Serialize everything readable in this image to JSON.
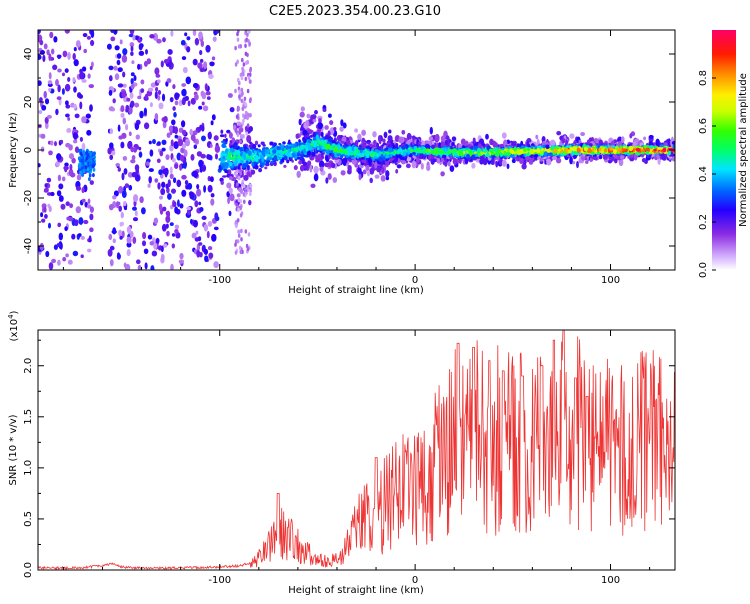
{
  "figure": {
    "title": "C2E5.2023.354.00.23.G10"
  },
  "chart_data": [
    {
      "type": "heatmap",
      "title": "C2E5.2023.354.00.23.G10",
      "xlabel": "Height of straight line (km)",
      "ylabel": "Frequency (Hz)",
      "xlim": [
        -193,
        133
      ],
      "ylim": [
        -50,
        50
      ],
      "xticks": [
        -100,
        0,
        100
      ],
      "yticks": [
        -40,
        -20,
        0,
        20,
        40
      ],
      "grid": false,
      "colorbar": {
        "label": "Normalized spectral amplitude",
        "range": [
          0.0,
          1.0
        ],
        "ticks": [
          0.0,
          0.2,
          0.4,
          0.6,
          0.8
        ],
        "tick_labels": [
          "0.0",
          "0.2",
          "0.4",
          "0.6",
          "0.8"
        ],
        "colormap": "rainbow (white-violet-blue-cyan-green-yellow-red-magenta)"
      },
      "gaps_x": [
        [
          -165,
          -157
        ],
        [
          -101,
          -96
        ],
        [
          -84,
          -60
        ]
      ],
      "ridge": [
        {
          "x": -193,
          "f": 0,
          "width": 50,
          "amp": 0.25
        },
        {
          "x": -170,
          "f": -4,
          "width": 50,
          "amp": 0.3
        },
        {
          "x": -160,
          "f": -6,
          "width": 50,
          "amp": 0.35
        },
        {
          "x": -140,
          "f": 0,
          "width": 50,
          "amp": 0.25
        },
        {
          "x": -110,
          "f": 0,
          "width": 50,
          "amp": 0.25
        },
        {
          "x": -95,
          "f": -3,
          "width": 12,
          "amp": 0.5
        },
        {
          "x": -80,
          "f": -3,
          "width": 10,
          "amp": 0.45
        },
        {
          "x": -60,
          "f": 0,
          "width": 9,
          "amp": 0.45
        },
        {
          "x": -50,
          "f": 3,
          "width": 8,
          "amp": 0.5
        },
        {
          "x": -40,
          "f": 0,
          "width": 6,
          "amp": 0.55
        },
        {
          "x": -20,
          "f": -2,
          "width": 5,
          "amp": 0.5
        },
        {
          "x": 0,
          "f": 0,
          "width": 4,
          "amp": 0.55
        },
        {
          "x": 20,
          "f": -1,
          "width": 3.5,
          "amp": 0.6
        },
        {
          "x": 40,
          "f": -1,
          "width": 3,
          "amp": 0.7
        },
        {
          "x": 60,
          "f": -0.5,
          "width": 3,
          "amp": 0.75
        },
        {
          "x": 80,
          "f": 0,
          "width": 3,
          "amp": 0.85
        },
        {
          "x": 100,
          "f": 0,
          "width": 2.5,
          "amp": 0.9
        },
        {
          "x": 120,
          "f": 0,
          "width": 2.5,
          "amp": 0.95
        },
        {
          "x": 133,
          "f": 0,
          "width": 2.5,
          "amp": 0.95
        }
      ]
    },
    {
      "type": "line",
      "xlabel": "Height of straight line (km)",
      "ylabel": "SNR (10 * v/v)",
      "y_multiplier": "(x10^4)",
      "xlim": [
        -193,
        133
      ],
      "ylim": [
        0,
        2.35
      ],
      "xticks": [
        -100,
        0,
        100
      ],
      "yticks": [
        0.0,
        0.5,
        1.0,
        1.5,
        2.0
      ],
      "ytick_labels": [
        "0.0",
        "0.5",
        "1.0",
        "1.5",
        "2.0"
      ],
      "grid": false,
      "color": "#ee3333",
      "series": [
        {
          "x": [
            -193,
            -170,
            -155,
            -150,
            -140,
            -120,
            -100,
            -90,
            -82,
            -78,
            -72,
            -68,
            -62,
            -56,
            -50,
            -44,
            -38,
            -32,
            -28,
            -20,
            -12,
            -5,
            0,
            8,
            15,
            20,
            25,
            30,
            35,
            40,
            45,
            50,
            55,
            60,
            65,
            70,
            75,
            80,
            85,
            90,
            95,
            100,
            110,
            120,
            128,
            133
          ],
          "y": [
            0.02,
            0.02,
            0.06,
            0.03,
            0.02,
            0.02,
            0.03,
            0.04,
            0.08,
            0.15,
            0.3,
            0.35,
            0.32,
            0.18,
            0.1,
            0.08,
            0.12,
            0.35,
            0.45,
            0.55,
            0.7,
            0.8,
            0.85,
            0.95,
            1.1,
            1.25,
            1.2,
            1.4,
            1.25,
            1.25,
            1.3,
            1.4,
            1.2,
            1.25,
            1.2,
            1.35,
            1.35,
            1.25,
            1.35,
            1.2,
            1.25,
            1.15,
            1.2,
            1.25,
            1.25,
            1.2
          ],
          "peaks": [
            [
              22,
              2.22
            ],
            [
              30,
              2.18
            ],
            [
              38,
              2.05
            ],
            [
              45,
              1.95
            ],
            [
              55,
              1.9
            ],
            [
              65,
              2.0
            ],
            [
              71,
              2.25
            ],
            [
              76,
              2.35
            ],
            [
              82,
              1.88
            ],
            [
              88,
              1.7
            ],
            [
              -70,
              0.75
            ],
            [
              -20,
              1.1
            ]
          ]
        }
      ]
    }
  ]
}
